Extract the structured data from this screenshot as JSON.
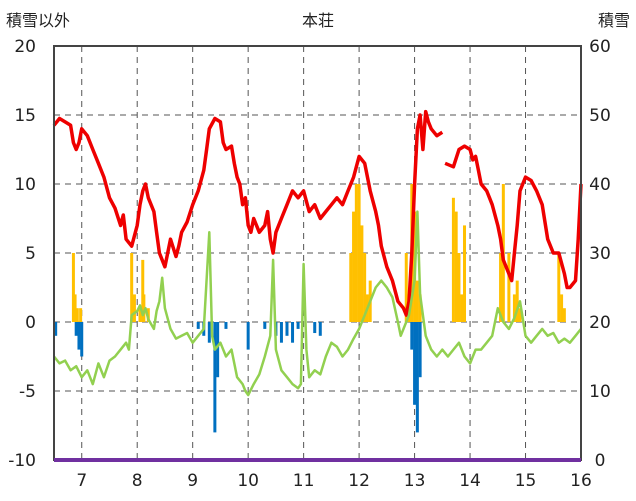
{
  "chart_data": {
    "type": "line",
    "title": "本荘",
    "ylabel_left": "積雪以外",
    "ylabel_right": "積雪",
    "ylim_left": [
      -10,
      20
    ],
    "ylim_right": [
      0,
      60
    ],
    "yticks_left": [
      "20",
      "15",
      "10",
      "5",
      "0",
      "-5",
      "-10"
    ],
    "yticks_right": [
      "60",
      "50",
      "40",
      "30",
      "20",
      "10",
      "0"
    ],
    "xlim": [
      6.5,
      16.0
    ],
    "xticks": [
      "7",
      "8",
      "9",
      "10",
      "11",
      "12",
      "13",
      "14",
      "15",
      "16"
    ],
    "grid": "dashed",
    "colors": {
      "snow_depth": "#ee0000",
      "temperature": "#92d050",
      "snowfall": "#ffc000",
      "precip_neg": "#0070c0",
      "baseline": "#7030a0"
    },
    "series": [
      {
        "key": "snow_depth",
        "axis": "right",
        "style": "line",
        "points": [
          [
            6.5,
            48.5
          ],
          [
            6.6,
            49.5
          ],
          [
            6.7,
            49
          ],
          [
            6.8,
            48.5
          ],
          [
            6.85,
            46
          ],
          [
            6.9,
            45
          ],
          [
            6.95,
            46
          ],
          [
            7.0,
            48
          ],
          [
            7.1,
            47
          ],
          [
            7.2,
            45
          ],
          [
            7.3,
            43
          ],
          [
            7.4,
            41
          ],
          [
            7.5,
            38
          ],
          [
            7.6,
            36.5
          ],
          [
            7.7,
            34
          ],
          [
            7.75,
            35.5
          ],
          [
            7.8,
            32
          ],
          [
            7.9,
            31
          ],
          [
            8.0,
            34
          ],
          [
            8.05,
            37
          ],
          [
            8.1,
            39
          ],
          [
            8.15,
            40
          ],
          [
            8.2,
            38
          ],
          [
            8.3,
            36
          ],
          [
            8.35,
            33
          ],
          [
            8.4,
            30
          ],
          [
            8.5,
            28
          ],
          [
            8.55,
            30
          ],
          [
            8.6,
            32
          ],
          [
            8.7,
            29.5
          ],
          [
            8.75,
            31
          ],
          [
            8.8,
            33
          ],
          [
            8.9,
            34.5
          ],
          [
            9.0,
            37
          ],
          [
            9.1,
            39
          ],
          [
            9.2,
            42
          ],
          [
            9.25,
            45
          ],
          [
            9.3,
            48
          ],
          [
            9.4,
            49.5
          ],
          [
            9.5,
            49
          ],
          [
            9.55,
            46
          ],
          [
            9.6,
            45
          ],
          [
            9.7,
            45.5
          ],
          [
            9.75,
            43
          ],
          [
            9.8,
            41
          ],
          [
            9.85,
            40
          ],
          [
            9.9,
            37
          ],
          [
            9.95,
            38
          ],
          [
            10.0,
            34
          ],
          [
            10.05,
            33
          ],
          [
            10.1,
            35
          ],
          [
            10.2,
            33
          ],
          [
            10.3,
            34
          ],
          [
            10.35,
            36
          ],
          [
            10.4,
            32
          ],
          [
            10.45,
            30
          ],
          [
            10.5,
            33
          ],
          [
            10.6,
            35
          ],
          [
            10.7,
            37
          ],
          [
            10.8,
            39
          ],
          [
            10.9,
            38
          ],
          [
            11.0,
            39
          ],
          [
            11.1,
            36
          ],
          [
            11.2,
            37
          ],
          [
            11.3,
            35
          ],
          [
            11.4,
            36
          ],
          [
            11.5,
            37
          ],
          [
            11.6,
            38
          ],
          [
            11.7,
            37
          ],
          [
            11.8,
            39
          ],
          [
            11.9,
            41
          ],
          [
            12.0,
            44
          ],
          [
            12.1,
            43
          ],
          [
            12.2,
            39
          ],
          [
            12.3,
            36
          ],
          [
            12.35,
            34
          ],
          [
            12.4,
            31
          ],
          [
            12.5,
            28
          ],
          [
            12.6,
            26
          ],
          [
            12.7,
            23
          ],
          [
            12.8,
            22
          ],
          [
            12.85,
            21
          ],
          [
            12.9,
            23
          ],
          [
            12.95,
            30
          ],
          [
            13.0,
            40
          ],
          [
            13.05,
            48
          ],
          [
            13.1,
            50
          ],
          [
            13.15,
            45
          ],
          [
            13.2,
            50.5
          ],
          [
            13.25,
            49
          ],
          [
            13.3,
            48
          ],
          [
            13.4,
            47
          ],
          [
            13.5,
            47.5
          ],
          null,
          [
            13.55,
            43
          ],
          [
            13.7,
            42.5
          ],
          [
            13.8,
            45
          ],
          [
            13.9,
            45.5
          ],
          [
            14.0,
            45
          ],
          [
            14.05,
            43.5
          ],
          [
            14.1,
            44
          ],
          [
            14.15,
            42
          ],
          [
            14.2,
            40
          ],
          [
            14.3,
            39
          ],
          [
            14.35,
            38
          ],
          [
            14.4,
            37
          ],
          [
            14.5,
            34
          ],
          [
            14.55,
            32
          ],
          [
            14.6,
            29
          ],
          [
            14.7,
            27
          ],
          [
            14.75,
            26
          ],
          [
            14.8,
            30
          ],
          [
            14.85,
            34
          ],
          [
            14.9,
            39
          ],
          [
            15.0,
            41
          ],
          [
            15.1,
            40.5
          ],
          [
            15.2,
            39
          ],
          [
            15.3,
            37
          ],
          [
            15.4,
            32
          ],
          [
            15.5,
            30
          ],
          [
            15.6,
            30
          ],
          [
            15.7,
            27
          ],
          [
            15.75,
            25
          ],
          [
            15.8,
            25
          ],
          [
            15.9,
            26
          ],
          [
            15.95,
            32
          ],
          [
            16.0,
            40
          ]
        ]
      },
      {
        "key": "temperature",
        "axis": "left",
        "style": "line",
        "points": [
          [
            6.5,
            -2.5
          ],
          [
            6.6,
            -3
          ],
          [
            6.7,
            -2.8
          ],
          [
            6.8,
            -3.5
          ],
          [
            6.9,
            -3.2
          ],
          [
            7.0,
            -4
          ],
          [
            7.1,
            -3.5
          ],
          [
            7.2,
            -4.5
          ],
          [
            7.3,
            -3
          ],
          [
            7.4,
            -4
          ],
          [
            7.5,
            -2.8
          ],
          [
            7.6,
            -2.5
          ],
          [
            7.7,
            -2
          ],
          [
            7.8,
            -1.5
          ],
          [
            7.85,
            -2
          ],
          [
            7.9,
            0.5
          ],
          [
            8.0,
            0.8
          ],
          [
            8.05,
            1.2
          ],
          [
            8.1,
            0.5
          ],
          [
            8.15,
            1
          ],
          [
            8.2,
            0.2
          ],
          [
            8.3,
            -0.5
          ],
          [
            8.35,
            0.8
          ],
          [
            8.4,
            1.5
          ],
          [
            8.45,
            3.2
          ],
          [
            8.5,
            1
          ],
          [
            8.6,
            -0.5
          ],
          [
            8.7,
            -1.2
          ],
          [
            8.8,
            -1
          ],
          [
            8.9,
            -0.8
          ],
          [
            9.0,
            -1.5
          ],
          [
            9.1,
            -1
          ],
          [
            9.2,
            -0.5
          ],
          [
            9.3,
            6.5
          ],
          [
            9.35,
            -1
          ],
          [
            9.4,
            -2
          ],
          [
            9.5,
            -1.5
          ],
          [
            9.6,
            -2.5
          ],
          [
            9.7,
            -2
          ],
          [
            9.8,
            -4
          ],
          [
            9.9,
            -4.5
          ],
          [
            9.95,
            -5
          ],
          [
            10.0,
            -5.3
          ],
          [
            10.1,
            -4.5
          ],
          [
            10.2,
            -3.8
          ],
          [
            10.3,
            -2.5
          ],
          [
            10.4,
            -1
          ],
          [
            10.45,
            4.5
          ],
          [
            10.5,
            -2
          ],
          [
            10.6,
            -3.5
          ],
          [
            10.7,
            -4
          ],
          [
            10.8,
            -4.5
          ],
          [
            10.9,
            -4.8
          ],
          [
            10.95,
            -4.5
          ],
          [
            11.0,
            4.2
          ],
          [
            11.05,
            -2
          ],
          [
            11.1,
            -4
          ],
          [
            11.2,
            -3.5
          ],
          [
            11.3,
            -3.8
          ],
          [
            11.4,
            -2.5
          ],
          [
            11.5,
            -1.5
          ],
          [
            11.6,
            -1.8
          ],
          [
            11.7,
            -2.5
          ],
          [
            11.8,
            -2
          ],
          [
            11.9,
            -1.2
          ],
          [
            12.0,
            -0.5
          ],
          [
            12.1,
            0.5
          ],
          [
            12.2,
            1.5
          ],
          [
            12.3,
            2.5
          ],
          [
            12.4,
            3
          ],
          [
            12.5,
            2.5
          ],
          [
            12.6,
            1.8
          ],
          [
            12.7,
            0
          ],
          [
            12.75,
            -1
          ],
          [
            12.8,
            -0.5
          ],
          [
            12.9,
            0.5
          ],
          [
            13.0,
            3
          ],
          [
            13.05,
            8
          ],
          [
            13.1,
            2
          ],
          [
            13.2,
            -1
          ],
          [
            13.3,
            -2
          ],
          [
            13.4,
            -2.5
          ],
          [
            13.5,
            -2
          ],
          [
            13.6,
            -2.5
          ],
          [
            13.7,
            -2
          ],
          [
            13.8,
            -1.5
          ],
          [
            13.9,
            -2.5
          ],
          [
            14.0,
            -3
          ],
          [
            14.1,
            -2
          ],
          [
            14.2,
            -2
          ],
          [
            14.3,
            -1.5
          ],
          [
            14.4,
            -1
          ],
          [
            14.5,
            1
          ],
          [
            14.6,
            0
          ],
          [
            14.7,
            -0.5
          ],
          [
            14.8,
            0.3
          ],
          [
            14.9,
            1.5
          ],
          [
            15.0,
            -1
          ],
          [
            15.1,
            -1.5
          ],
          [
            15.2,
            -1
          ],
          [
            15.3,
            -0.5
          ],
          [
            15.4,
            -1
          ],
          [
            15.5,
            -0.8
          ],
          [
            15.6,
            -1.5
          ],
          [
            15.7,
            -1.2
          ],
          [
            15.8,
            -1.5
          ],
          [
            15.9,
            -1
          ],
          [
            16.0,
            -0.5
          ]
        ]
      },
      {
        "key": "snowfall",
        "axis": "left",
        "style": "bar",
        "points": [
          [
            6.85,
            5
          ],
          [
            6.88,
            2
          ],
          [
            6.92,
            1
          ],
          [
            6.98,
            1
          ],
          [
            7.9,
            5
          ],
          [
            7.95,
            2
          ],
          [
            8.05,
            1
          ],
          [
            8.1,
            4.5
          ],
          [
            8.12,
            2
          ],
          [
            8.2,
            1
          ],
          [
            11.85,
            5
          ],
          [
            11.9,
            8
          ],
          [
            11.95,
            10
          ],
          [
            12.0,
            10
          ],
          [
            12.05,
            7
          ],
          [
            12.1,
            5
          ],
          [
            12.15,
            2
          ],
          [
            12.2,
            3
          ],
          [
            12.85,
            5
          ],
          [
            12.9,
            2
          ],
          [
            12.95,
            10
          ],
          [
            13.0,
            8
          ],
          [
            13.05,
            3
          ],
          [
            13.1,
            2
          ],
          [
            13.7,
            9
          ],
          [
            13.75,
            8
          ],
          [
            13.8,
            5
          ],
          [
            13.85,
            2
          ],
          [
            13.9,
            7
          ],
          [
            14.55,
            5
          ],
          [
            14.6,
            10
          ],
          [
            14.7,
            5
          ],
          [
            14.8,
            2
          ],
          [
            14.85,
            3
          ],
          [
            14.9,
            1
          ],
          [
            15.6,
            5
          ],
          [
            15.65,
            2
          ],
          [
            15.7,
            1
          ]
        ]
      },
      {
        "key": "precip_neg",
        "axis": "left",
        "style": "bar",
        "points": [
          [
            6.53,
            -1
          ],
          [
            6.9,
            -1
          ],
          [
            6.95,
            -2
          ],
          [
            7.0,
            -2.5
          ],
          [
            9.1,
            -0.5
          ],
          [
            9.2,
            -1
          ],
          [
            9.3,
            -1.5
          ],
          [
            9.4,
            -8
          ],
          [
            9.45,
            -4
          ],
          [
            9.6,
            -0.5
          ],
          [
            10.0,
            -2
          ],
          [
            10.3,
            -0.5
          ],
          [
            10.5,
            -1
          ],
          [
            10.6,
            -1.5
          ],
          [
            10.7,
            -1
          ],
          [
            10.8,
            -1.5
          ],
          [
            10.9,
            -0.5
          ],
          [
            11.2,
            -0.8
          ],
          [
            11.3,
            -1
          ],
          [
            12.95,
            -2
          ],
          [
            13.0,
            -6
          ],
          [
            13.05,
            -8
          ],
          [
            13.1,
            -4
          ]
        ]
      }
    ]
  }
}
